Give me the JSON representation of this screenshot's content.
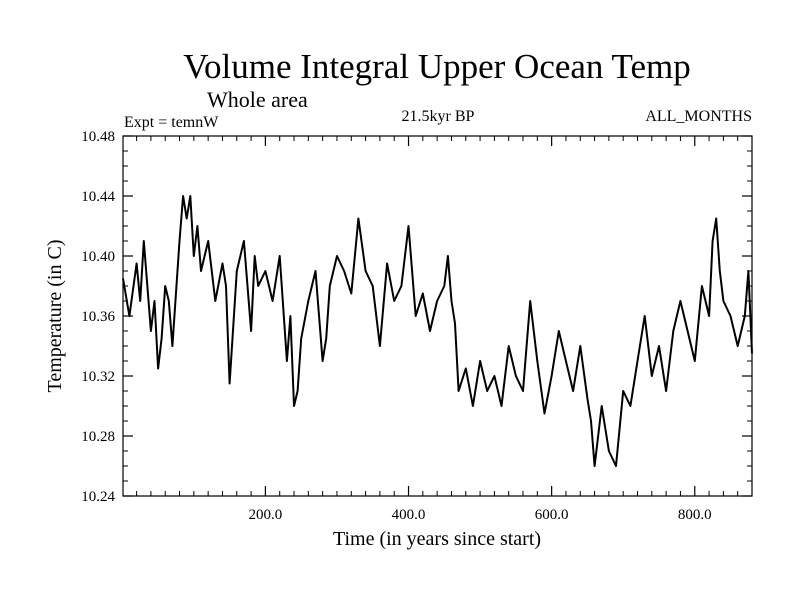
{
  "chart_data": {
    "type": "line",
    "title": "Volume Integral Upper Ocean Temp",
    "subtitle": "Whole area",
    "annotations": {
      "left": "Expt = temnW",
      "center": "21.5kyr BP",
      "right": "ALL_MONTHS"
    },
    "xlabel": "Time (in years since start)",
    "ylabel": "Temperature (in C)",
    "xlim": [
      1,
      880
    ],
    "ylim": [
      10.24,
      10.48
    ],
    "x_ticks": [
      {
        "value": 200,
        "label": "200.0"
      },
      {
        "value": 400,
        "label": "400.0"
      },
      {
        "value": 600,
        "label": "600.0"
      },
      {
        "value": 800,
        "label": "800.0"
      }
    ],
    "y_ticks": [
      {
        "value": 10.24,
        "label": "10.24"
      },
      {
        "value": 10.28,
        "label": "10.28"
      },
      {
        "value": 10.32,
        "label": "10.32"
      },
      {
        "value": 10.36,
        "label": "10.36"
      },
      {
        "value": 10.4,
        "label": "10.40"
      },
      {
        "value": 10.44,
        "label": "10.44"
      },
      {
        "value": 10.48,
        "label": "10.48"
      }
    ],
    "x_minor_step": 20,
    "y_minor_step": 0.01,
    "line_color": "#000000",
    "series": [
      {
        "name": "temnW",
        "x": [
          1,
          10,
          20,
          25,
          30,
          40,
          45,
          50,
          55,
          60,
          65,
          70,
          80,
          85,
          90,
          95,
          100,
          105,
          110,
          120,
          130,
          140,
          145,
          150,
          160,
          170,
          180,
          185,
          190,
          200,
          210,
          220,
          230,
          235,
          240,
          245,
          250,
          260,
          270,
          280,
          285,
          290,
          300,
          310,
          320,
          330,
          340,
          350,
          360,
          370,
          380,
          390,
          400,
          410,
          420,
          430,
          440,
          450,
          455,
          460,
          465,
          470,
          480,
          490,
          500,
          510,
          520,
          530,
          540,
          550,
          560,
          570,
          580,
          590,
          600,
          610,
          620,
          630,
          640,
          650,
          655,
          660,
          670,
          680,
          690,
          700,
          710,
          720,
          730,
          740,
          750,
          760,
          770,
          780,
          790,
          800,
          810,
          820,
          825,
          830,
          835,
          840,
          850,
          860,
          870,
          875,
          880
        ],
        "y": [
          10.385,
          10.36,
          10.395,
          10.37,
          10.41,
          10.35,
          10.37,
          10.325,
          10.345,
          10.38,
          10.37,
          10.34,
          10.41,
          10.44,
          10.425,
          10.44,
          10.4,
          10.42,
          10.39,
          10.41,
          10.37,
          10.395,
          10.38,
          10.315,
          10.39,
          10.41,
          10.35,
          10.4,
          10.38,
          10.39,
          10.37,
          10.4,
          10.33,
          10.36,
          10.3,
          10.31,
          10.345,
          10.37,
          10.39,
          10.33,
          10.345,
          10.38,
          10.4,
          10.39,
          10.375,
          10.425,
          10.39,
          10.38,
          10.34,
          10.395,
          10.37,
          10.38,
          10.42,
          10.36,
          10.375,
          10.35,
          10.37,
          10.38,
          10.4,
          10.37,
          10.355,
          10.31,
          10.325,
          10.3,
          10.33,
          10.31,
          10.32,
          10.3,
          10.34,
          10.32,
          10.31,
          10.37,
          10.33,
          10.295,
          10.32,
          10.35,
          10.33,
          10.31,
          10.34,
          10.305,
          10.29,
          10.26,
          10.3,
          10.27,
          10.26,
          10.31,
          10.3,
          10.33,
          10.36,
          10.32,
          10.34,
          10.31,
          10.35,
          10.37,
          10.35,
          10.33,
          10.38,
          10.36,
          10.41,
          10.425,
          10.39,
          10.37,
          10.36,
          10.34,
          10.36,
          10.39,
          10.335
        ]
      }
    ]
  }
}
